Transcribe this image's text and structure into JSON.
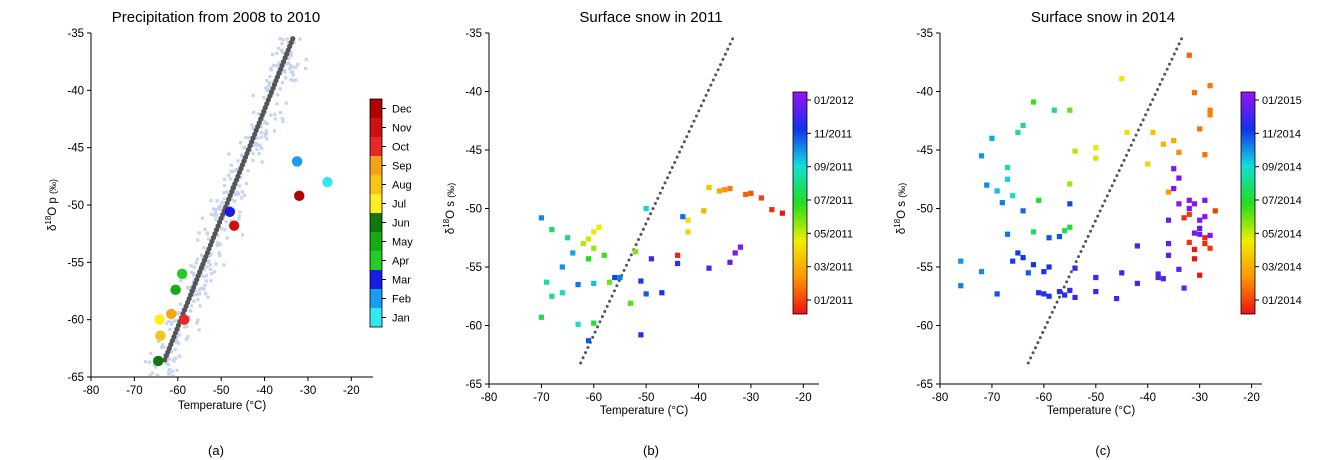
{
  "figure": {
    "panel_labels": [
      "(a)",
      "(b)",
      "(c)"
    ]
  },
  "colors": {
    "background_points": "#c7d3f0",
    "regression_line": "#555555",
    "month_colors": [
      "#33e8f0",
      "#1a9cf0",
      "#1a1ae6",
      "#22cc22",
      "#17aa17",
      "#117711",
      "#ffee22",
      "#f5c518",
      "#f5a418",
      "#e82828",
      "#d01010",
      "#b00000"
    ]
  },
  "chart_data": [
    {
      "type": "scatter",
      "title": "Precipitation from 2008 to 2010",
      "xlabel": "Temperature (°C)",
      "ylabel": {
        "base": "δ",
        "sup": "18",
        "main": "O p",
        "unit": "(‰)"
      },
      "xlim": [
        -80,
        -15
      ],
      "ylim": [
        -65,
        -35
      ],
      "xticks": [
        -80,
        -70,
        -60,
        -50,
        -40,
        -30,
        -20
      ],
      "yticks": [
        -35,
        -40,
        -45,
        -50,
        -55,
        -60,
        -65
      ],
      "grid": false,
      "legend": "colorbar-right",
      "colorbar": {
        "type": "categorical",
        "labels": [
          "Jan",
          "Feb",
          "Mar",
          "Apr",
          "May",
          "Jun",
          "Jul",
          "Aug",
          "Sep",
          "Oct",
          "Nov",
          "Dec"
        ],
        "colors": [
          "#33e8f0",
          "#1a9cf0",
          "#1a1ae6",
          "#22cc22",
          "#17aa17",
          "#117711",
          "#ffee22",
          "#f5c518",
          "#f5a418",
          "#e82828",
          "#d01010",
          "#b00000"
        ]
      },
      "regression_line": {
        "x": [
          -63,
          -33.5
        ],
        "y": [
          -63.5,
          -35.5
        ]
      },
      "monthly_means": [
        {
          "month": "Jan",
          "x": -25.5,
          "y": -48.0
        },
        {
          "month": "Feb",
          "x": -32.5,
          "y": -46.2
        },
        {
          "month": "Mar",
          "x": -48.0,
          "y": -50.6
        },
        {
          "month": "Apr",
          "x": -59.0,
          "y": -56.0
        },
        {
          "month": "May",
          "x": -60.5,
          "y": -57.4
        },
        {
          "month": "Jun",
          "x": -64.5,
          "y": -63.6
        },
        {
          "month": "Jul",
          "x": -64.2,
          "y": -60.0
        },
        {
          "month": "Aug",
          "x": -64.0,
          "y": -61.4
        },
        {
          "month": "Sep",
          "x": -61.5,
          "y": -59.5
        },
        {
          "month": "Oct",
          "x": -58.5,
          "y": -60.0
        },
        {
          "month": "Nov",
          "x": -47.0,
          "y": -51.8
        },
        {
          "month": "Dec",
          "x": -32.0,
          "y": -49.2
        }
      ]
    },
    {
      "type": "scatter",
      "title": "Surface snow in 2011",
      "xlabel": "Temperature (°C)",
      "ylabel": {
        "base": "δ",
        "sup": "18",
        "main": "O s",
        "unit": "(‰)"
      },
      "xlim": [
        -80,
        -17
      ],
      "ylim": [
        -65,
        -35
      ],
      "xticks": [
        -80,
        -70,
        -60,
        -50,
        -40,
        -30,
        -20
      ],
      "yticks": [
        -35,
        -40,
        -45,
        -50,
        -55,
        -60,
        -65
      ],
      "grid": false,
      "legend": "colorbar-right",
      "colorbar": {
        "type": "continuous",
        "labels": [
          "01/2011",
          "03/2011",
          "05/2011",
          "07/2011",
          "09/2011",
          "11/2011",
          "01/2012"
        ]
      },
      "regression_line": {
        "x": [
          -62.5,
          -33.5
        ],
        "y": [
          -63.2,
          -35.5
        ]
      },
      "points": [
        {
          "x": -24,
          "y": -50.4,
          "t": 0.0
        },
        {
          "x": -26,
          "y": -50.1,
          "t": 0.03
        },
        {
          "x": -28,
          "y": -49.1,
          "t": 0.06
        },
        {
          "x": -30,
          "y": -48.7,
          "t": 0.08
        },
        {
          "x": -31,
          "y": -48.8,
          "t": 0.1
        },
        {
          "x": -34,
          "y": -48.3,
          "t": 0.13
        },
        {
          "x": -35,
          "y": -48.4,
          "t": 0.16
        },
        {
          "x": -36,
          "y": -48.5,
          "t": 0.19
        },
        {
          "x": -39,
          "y": -50.2,
          "t": 0.22
        },
        {
          "x": -38,
          "y": -48.2,
          "t": 0.25
        },
        {
          "x": -44,
          "y": -54.0,
          "t": 0.02
        },
        {
          "x": -42,
          "y": -52.0,
          "t": 0.28
        },
        {
          "x": -42,
          "y": -51.0,
          "t": 0.3
        },
        {
          "x": -60,
          "y": -52.0,
          "t": 0.32
        },
        {
          "x": -59,
          "y": -51.6,
          "t": 0.34
        },
        {
          "x": -61,
          "y": -52.6,
          "t": 0.36
        },
        {
          "x": -62,
          "y": -53.0,
          "t": 0.38
        },
        {
          "x": -60,
          "y": -53.4,
          "t": 0.4
        },
        {
          "x": -52,
          "y": -53.7,
          "t": 0.42
        },
        {
          "x": -57,
          "y": -56.3,
          "t": 0.44
        },
        {
          "x": -53,
          "y": -58.1,
          "t": 0.46
        },
        {
          "x": -58,
          "y": -54.0,
          "t": 0.48
        },
        {
          "x": -61,
          "y": -54.3,
          "t": 0.5
        },
        {
          "x": -60,
          "y": -59.8,
          "t": 0.52
        },
        {
          "x": -70,
          "y": -59.3,
          "t": 0.54
        },
        {
          "x": -68,
          "y": -51.8,
          "t": 0.56
        },
        {
          "x": -65,
          "y": -52.5,
          "t": 0.58
        },
        {
          "x": -68,
          "y": -57.5,
          "t": 0.6
        },
        {
          "x": -69,
          "y": -56.3,
          "t": 0.62
        },
        {
          "x": -66,
          "y": -57.2,
          "t": 0.64
        },
        {
          "x": -63,
          "y": -59.9,
          "t": 0.66
        },
        {
          "x": -50,
          "y": -50.0,
          "t": 0.68
        },
        {
          "x": -60,
          "y": -56.4,
          "t": 0.7
        },
        {
          "x": -64,
          "y": -53.8,
          "t": 0.72
        },
        {
          "x": -66,
          "y": -55.0,
          "t": 0.74
        },
        {
          "x": -70,
          "y": -50.8,
          "t": 0.75
        },
        {
          "x": -55,
          "y": -55.9,
          "t": 0.76
        },
        {
          "x": -63,
          "y": -56.5,
          "t": 0.77
        },
        {
          "x": -43,
          "y": -50.7,
          "t": 0.78
        },
        {
          "x": -50,
          "y": -57.3,
          "t": 0.79
        },
        {
          "x": -61,
          "y": -61.3,
          "t": 0.8
        },
        {
          "x": -56,
          "y": -55.9,
          "t": 0.81
        },
        {
          "x": -51,
          "y": -56.2,
          "t": 0.82
        },
        {
          "x": -47,
          "y": -57.2,
          "t": 0.84
        },
        {
          "x": -51,
          "y": -60.8,
          "t": 0.86
        },
        {
          "x": -44,
          "y": -54.7,
          "t": 0.87
        },
        {
          "x": -49,
          "y": -54.3,
          "t": 0.89
        },
        {
          "x": -38,
          "y": -55.1,
          "t": 0.91
        },
        {
          "x": -34,
          "y": -54.6,
          "t": 0.93
        },
        {
          "x": -33,
          "y": -53.8,
          "t": 0.96
        },
        {
          "x": -32,
          "y": -53.3,
          "t": 0.98
        }
      ]
    },
    {
      "type": "scatter",
      "title": "Surface snow in 2014",
      "xlabel": "Temperature (°C)",
      "ylabel": {
        "base": "δ",
        "sup": "18",
        "main": "O s",
        "unit": "(‰)"
      },
      "xlim": [
        -80,
        -18
      ],
      "ylim": [
        -65,
        -35
      ],
      "xticks": [
        -80,
        -70,
        -60,
        -50,
        -40,
        -30,
        -20
      ],
      "yticks": [
        -35,
        -40,
        -45,
        -50,
        -55,
        -60,
        -65
      ],
      "grid": false,
      "legend": "colorbar-right",
      "colorbar": {
        "type": "continuous",
        "labels": [
          "01/2014",
          "03/2014",
          "05/2014",
          "07/2014",
          "09/2014",
          "11/2014",
          "01/2015"
        ]
      },
      "regression_line": {
        "x": [
          -63,
          -33.5
        ],
        "y": [
          -63.2,
          -35.5
        ]
      },
      "points": [
        {
          "x": -32,
          "y": -36.9,
          "t": 0.1
        },
        {
          "x": -31,
          "y": -40.1,
          "t": 0.12
        },
        {
          "x": -28,
          "y": -39.5,
          "t": 0.13
        },
        {
          "x": -28,
          "y": -41.6,
          "t": 0.13
        },
        {
          "x": -28,
          "y": -42.0,
          "t": 0.14
        },
        {
          "x": -30,
          "y": -43.2,
          "t": 0.12
        },
        {
          "x": -29,
          "y": -45.4,
          "t": 0.12
        },
        {
          "x": -27,
          "y": -50.2,
          "t": 0.06
        },
        {
          "x": -32,
          "y": -50.5,
          "t": 0.05
        },
        {
          "x": -33,
          "y": -50.8,
          "t": 0.03
        },
        {
          "x": -34,
          "y": -45.2,
          "t": 0.15
        },
        {
          "x": -36,
          "y": -48.6,
          "t": 0.17
        },
        {
          "x": -35,
          "y": -44.2,
          "t": 0.2
        },
        {
          "x": -37,
          "y": -44.5,
          "t": 0.22
        },
        {
          "x": -39,
          "y": -43.5,
          "t": 0.25
        },
        {
          "x": -40,
          "y": -46.2,
          "t": 0.28
        },
        {
          "x": -44,
          "y": -43.5,
          "t": 0.3
        },
        {
          "x": -45,
          "y": -38.9,
          "t": 0.32
        },
        {
          "x": -50,
          "y": -44.8,
          "t": 0.34
        },
        {
          "x": -50,
          "y": -45.7,
          "t": 0.36
        },
        {
          "x": -54,
          "y": -45.1,
          "t": 0.38
        },
        {
          "x": -55,
          "y": -47.9,
          "t": 0.4
        },
        {
          "x": -55,
          "y": -41.6,
          "t": 0.44
        },
        {
          "x": -62,
          "y": -40.9,
          "t": 0.48
        },
        {
          "x": -61,
          "y": -49.3,
          "t": 0.5
        },
        {
          "x": -55,
          "y": -51.6,
          "t": 0.52
        },
        {
          "x": -56,
          "y": -51.9,
          "t": 0.54
        },
        {
          "x": -62,
          "y": -52.0,
          "t": 0.56
        },
        {
          "x": -58,
          "y": -41.6,
          "t": 0.58
        },
        {
          "x": -64,
          "y": -42.9,
          "t": 0.6
        },
        {
          "x": -65,
          "y": -43.5,
          "t": 0.62
        },
        {
          "x": -67,
          "y": -46.5,
          "t": 0.64
        },
        {
          "x": -66,
          "y": -48.9,
          "t": 0.66
        },
        {
          "x": -67,
          "y": -47.5,
          "t": 0.68
        },
        {
          "x": -69,
          "y": -48.5,
          "t": 0.7
        },
        {
          "x": -70,
          "y": -44.0,
          "t": 0.72
        },
        {
          "x": -72,
          "y": -45.5,
          "t": 0.74
        },
        {
          "x": -71,
          "y": -48.0,
          "t": 0.75
        },
        {
          "x": -68,
          "y": -49.5,
          "t": 0.76
        },
        {
          "x": -67,
          "y": -52.2,
          "t": 0.77
        },
        {
          "x": -64,
          "y": -50.2,
          "t": 0.78
        },
        {
          "x": -63,
          "y": -55.5,
          "t": 0.79
        },
        {
          "x": -57,
          "y": -52.4,
          "t": 0.8
        },
        {
          "x": -59,
          "y": -52.5,
          "t": 0.8
        },
        {
          "x": -55,
          "y": -49.6,
          "t": 0.81
        },
        {
          "x": -65,
          "y": -53.8,
          "t": 0.82
        },
        {
          "x": -66,
          "y": -54.5,
          "t": 0.82
        },
        {
          "x": -64,
          "y": -54.2,
          "t": 0.83
        },
        {
          "x": -62,
          "y": -54.8,
          "t": 0.83
        },
        {
          "x": -60,
          "y": -55.4,
          "t": 0.84
        },
        {
          "x": -59,
          "y": -55.0,
          "t": 0.84
        },
        {
          "x": -76,
          "y": -56.6,
          "t": 0.76
        },
        {
          "x": -76,
          "y": -54.5,
          "t": 0.74
        },
        {
          "x": -72,
          "y": -55.4,
          "t": 0.75
        },
        {
          "x": -69,
          "y": -57.3,
          "t": 0.8
        },
        {
          "x": -61,
          "y": -57.2,
          "t": 0.84
        },
        {
          "x": -59,
          "y": -57.5,
          "t": 0.85
        },
        {
          "x": -60,
          "y": -57.3,
          "t": 0.85
        },
        {
          "x": -57,
          "y": -57.1,
          "t": 0.86
        },
        {
          "x": -56,
          "y": -57.4,
          "t": 0.86
        },
        {
          "x": -55,
          "y": -57.0,
          "t": 0.87
        },
        {
          "x": -54,
          "y": -57.6,
          "t": 0.87
        },
        {
          "x": -50,
          "y": -57.1,
          "t": 0.88
        },
        {
          "x": -46,
          "y": -57.7,
          "t": 0.88
        },
        {
          "x": -54,
          "y": -55.1,
          "t": 0.87
        },
        {
          "x": -50,
          "y": -55.9,
          "t": 0.88
        },
        {
          "x": -45,
          "y": -55.5,
          "t": 0.89
        },
        {
          "x": -42,
          "y": -56.4,
          "t": 0.89
        },
        {
          "x": -42,
          "y": -53.2,
          "t": 0.89
        },
        {
          "x": -38,
          "y": -55.6,
          "t": 0.9
        },
        {
          "x": -37,
          "y": -56.0,
          "t": 0.9
        },
        {
          "x": -38,
          "y": -55.9,
          "t": 0.91
        },
        {
          "x": -36,
          "y": -54.0,
          "t": 0.92
        },
        {
          "x": -36,
          "y": -53.0,
          "t": 0.93
        },
        {
          "x": -36,
          "y": -51.0,
          "t": 0.94
        },
        {
          "x": -34,
          "y": -55.2,
          "t": 0.92
        },
        {
          "x": -33,
          "y": -56.8,
          "t": 0.94
        },
        {
          "x": -34,
          "y": -47.4,
          "t": 0.95
        },
        {
          "x": -35,
          "y": -46.6,
          "t": 0.96
        },
        {
          "x": -35,
          "y": -48.3,
          "t": 0.97
        },
        {
          "x": -34,
          "y": -49.6,
          "t": 0.98
        },
        {
          "x": -32,
          "y": -49.3,
          "t": 0.98
        },
        {
          "x": -31,
          "y": -49.6,
          "t": 0.99
        },
        {
          "x": -29,
          "y": -49.3,
          "t": 0.97
        },
        {
          "x": -30,
          "y": -51.0,
          "t": 0.96
        },
        {
          "x": -31,
          "y": -52.1,
          "t": 0.95
        },
        {
          "x": -30,
          "y": -52.2,
          "t": 0.94
        },
        {
          "x": -28,
          "y": -52.3,
          "t": 0.96
        },
        {
          "x": -29,
          "y": -52.5,
          "t": 0.02
        },
        {
          "x": -32,
          "y": -52.9,
          "t": 0.04
        },
        {
          "x": -31,
          "y": -53.5,
          "t": 0.01
        },
        {
          "x": -29,
          "y": -53.0,
          "t": 0.03
        },
        {
          "x": -28,
          "y": -53.4,
          "t": 0.05
        },
        {
          "x": -31,
          "y": -54.3,
          "t": 0.0
        },
        {
          "x": -30,
          "y": -55.7,
          "t": 0.0
        },
        {
          "x": -32,
          "y": -50.0,
          "t": 0.97
        },
        {
          "x": -29,
          "y": -50.7,
          "t": 0.98
        },
        {
          "x": -30,
          "y": -51.7,
          "t": 0.93
        },
        {
          "x": -20,
          "y": -49.6,
          "t": 0.06
        }
      ]
    }
  ]
}
